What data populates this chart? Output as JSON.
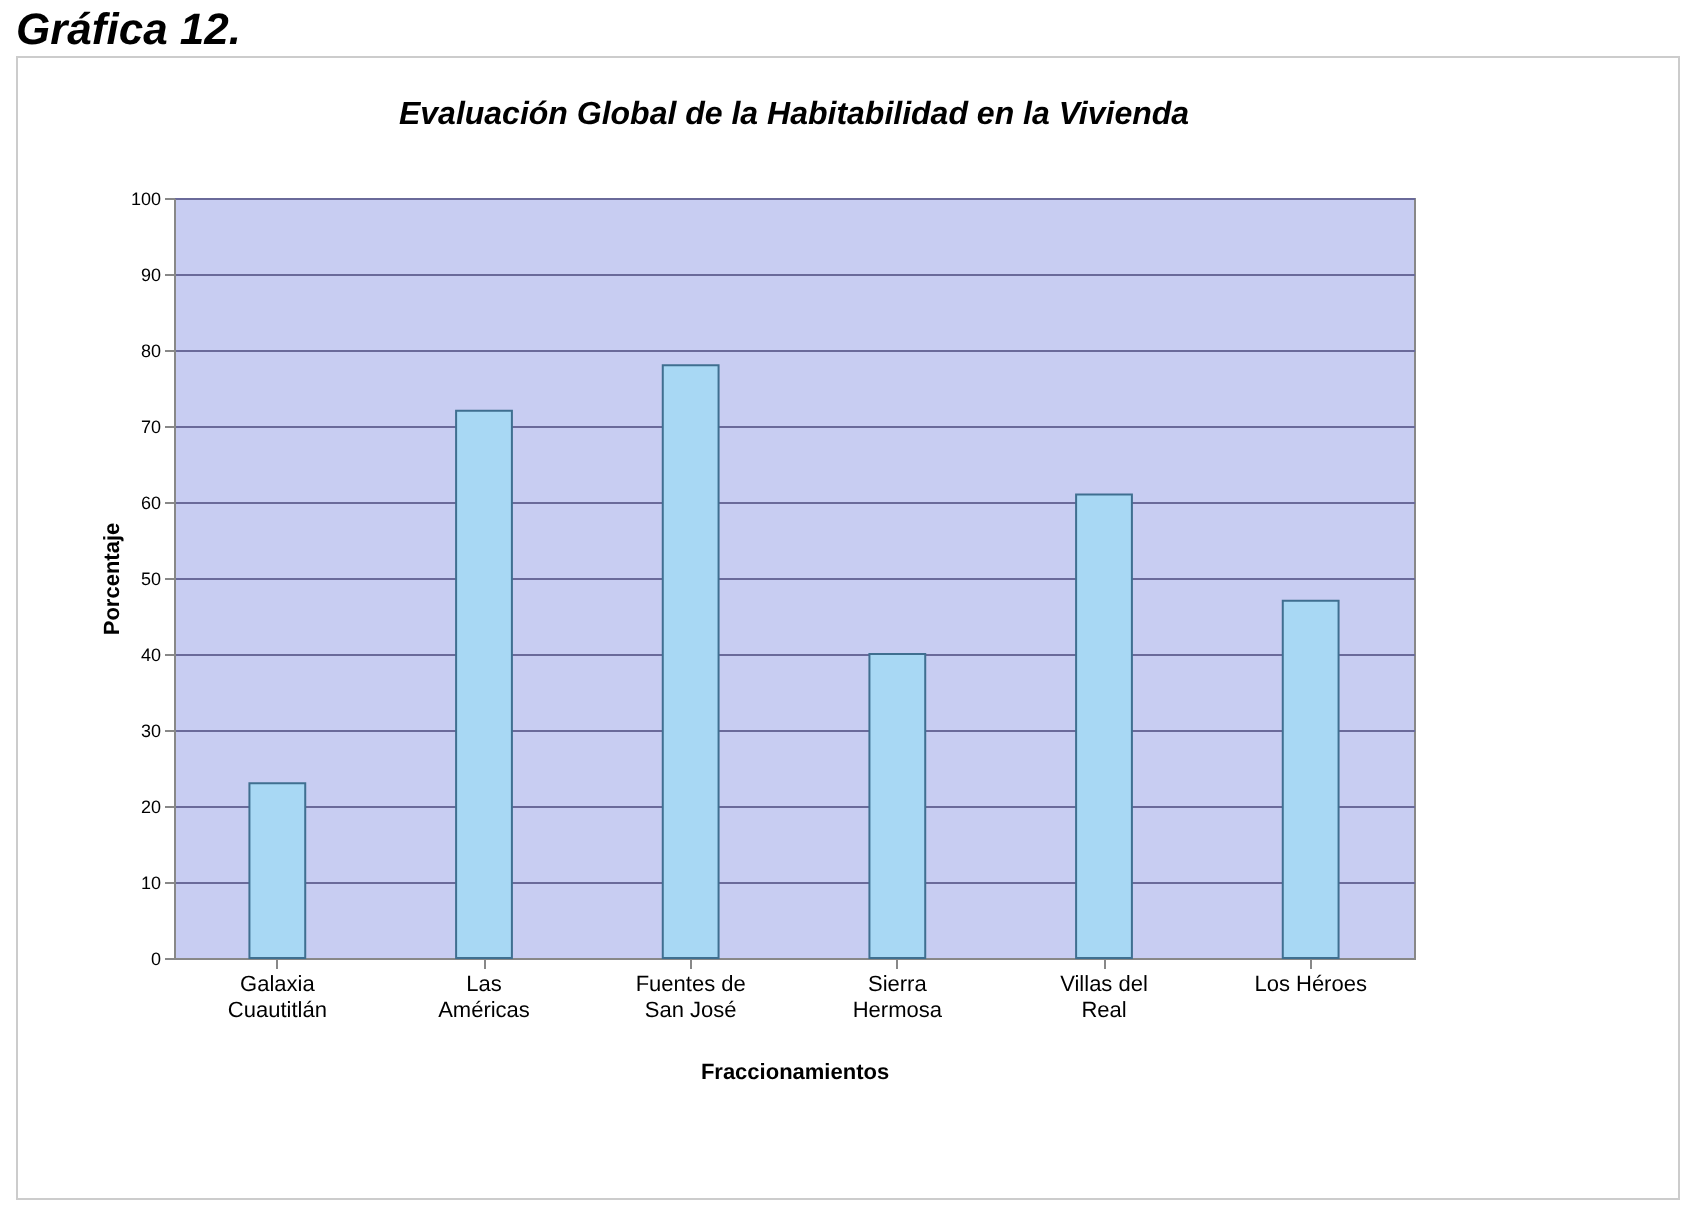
{
  "chart_data": {
    "type": "bar",
    "title": "Evaluación Global de la Habitabilidad en la Vivienda",
    "xlabel": "Fraccionamientos",
    "ylabel": "Porcentaje",
    "categories": [
      "Galaxia Cuautitlán",
      "Las Américas",
      "Fuentes de San José",
      "Sierra Hermosa",
      "Villas del Real",
      "Los Héroes"
    ],
    "values": [
      23,
      72,
      78,
      40,
      61,
      47
    ],
    "color": "#a8d8f4",
    "ylim": [
      0,
      100
    ],
    "yticks": [
      0,
      10,
      20,
      30,
      40,
      50,
      60,
      70,
      80,
      90,
      100
    ],
    "grid": "y",
    "annotations": [
      "Gráfica 12."
    ]
  }
}
